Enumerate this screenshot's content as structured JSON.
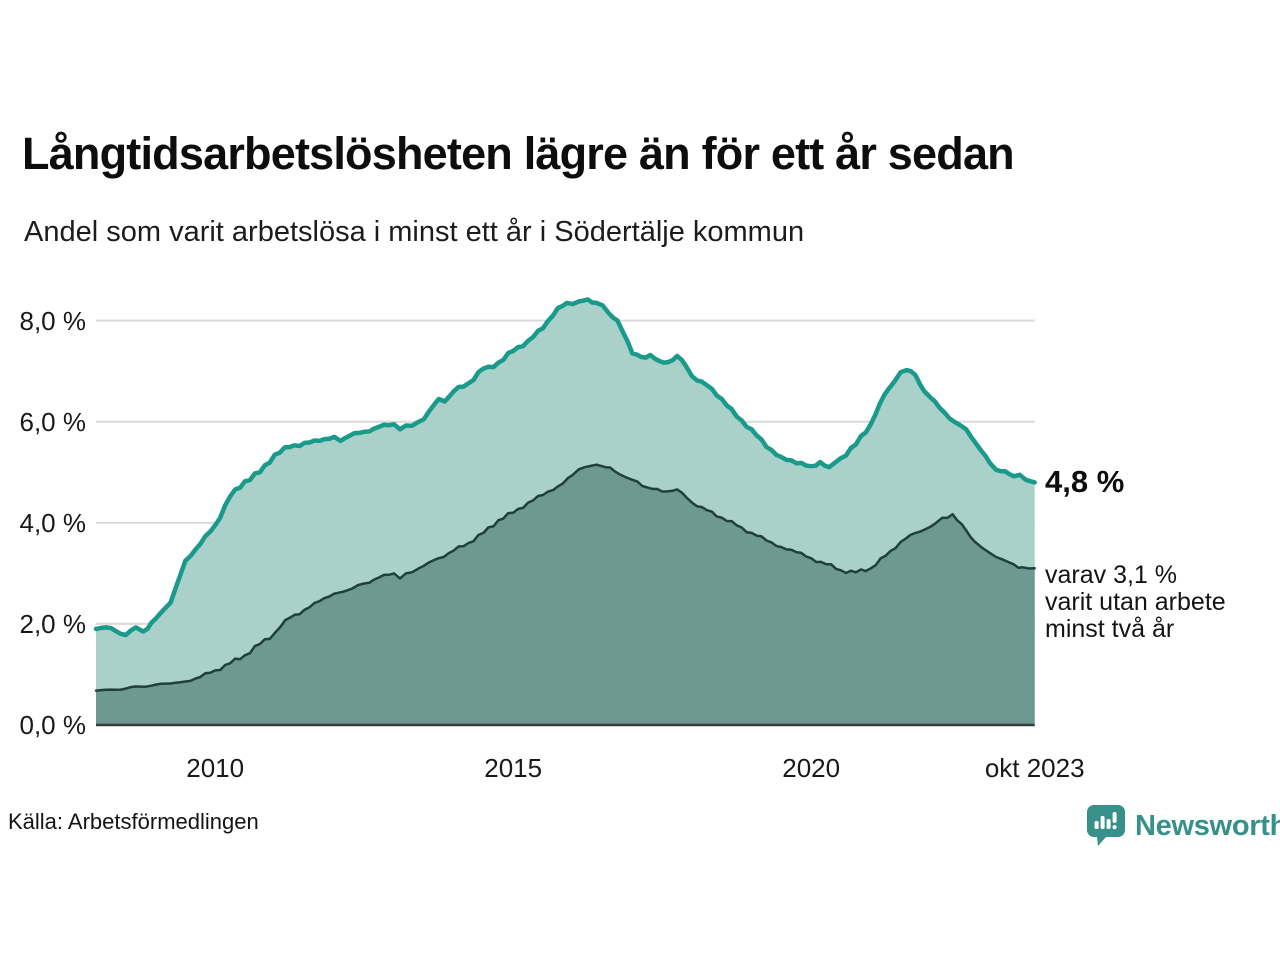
{
  "header": {
    "title": "Långtidsarbetslösheten lägre än för ett år sedan",
    "subtitle": "Andel som varit arbetslösa i minst ett år i Södertälje kommun"
  },
  "annotations": {
    "latest_value": "4,8 %",
    "secondary_line1": "varav 3,1 %",
    "secondary_line2": "varit utan arbete",
    "secondary_line3": "minst två år"
  },
  "source": {
    "label": "Källa: Arbetsförmedlingen"
  },
  "branding": {
    "name": "Newsworthy",
    "icon": "newsworthy-speech-bubble-bar-chart-icon",
    "color": "#37918a"
  },
  "chart_data": {
    "type": "area",
    "title": "Långtidsarbetslösheten lägre än för ett år sedan",
    "subtitle": "Andel som varit arbetslösa i minst ett år i Södertälje kommun",
    "x_unit": "time (monthly observations, decimal years)",
    "x_range": [
      2008.0,
      2023.75
    ],
    "ylim": [
      0,
      8.6
    ],
    "grid": "horizontal",
    "colors": {
      "grid": "#d9d9d9",
      "axis": "#3a3a3a",
      "series1_line": "#1a9a8b",
      "series1_fill": "#a9d0c9",
      "series2_line": "#20403c",
      "series2_fill": "#6e9993"
    },
    "y_ticks": [
      {
        "label": "0,0 %",
        "value": 0
      },
      {
        "label": "2,0 %",
        "value": 2
      },
      {
        "label": "4,0 %",
        "value": 4
      },
      {
        "label": "6,0 %",
        "value": 6
      },
      {
        "label": "8,0 %",
        "value": 8
      }
    ],
    "x_ticks": [
      {
        "label": "2010",
        "t": 2010
      },
      {
        "label": "2015",
        "t": 2015
      },
      {
        "label": "2020",
        "t": 2020
      },
      {
        "label": "okt 2023",
        "t": 2023.75
      }
    ],
    "series": [
      {
        "name": "Andel som varit arbetslösa i minst ett år",
        "latest_label": "4,8 %",
        "latest_value_pct": 4.8,
        "points": [
          [
            2008.0,
            1.9
          ],
          [
            2008.17,
            1.93
          ],
          [
            2008.33,
            1.86
          ],
          [
            2008.5,
            1.78
          ],
          [
            2008.67,
            1.93
          ],
          [
            2008.79,
            1.85
          ],
          [
            2009.0,
            2.1
          ],
          [
            2009.25,
            2.42
          ],
          [
            2009.5,
            3.25
          ],
          [
            2009.75,
            3.58
          ],
          [
            2010.0,
            3.95
          ],
          [
            2010.25,
            4.52
          ],
          [
            2010.5,
            4.82
          ],
          [
            2010.75,
            5.0
          ],
          [
            2011.0,
            5.35
          ],
          [
            2011.25,
            5.5
          ],
          [
            2011.5,
            5.58
          ],
          [
            2011.75,
            5.62
          ],
          [
            2012.0,
            5.7
          ],
          [
            2012.1,
            5.62
          ],
          [
            2012.25,
            5.72
          ],
          [
            2012.5,
            5.8
          ],
          [
            2012.75,
            5.9
          ],
          [
            2013.0,
            5.95
          ],
          [
            2013.1,
            5.85
          ],
          [
            2013.3,
            5.92
          ],
          [
            2013.5,
            6.05
          ],
          [
            2013.75,
            6.45
          ],
          [
            2013.85,
            6.4
          ],
          [
            2014.0,
            6.6
          ],
          [
            2014.25,
            6.76
          ],
          [
            2014.5,
            7.05
          ],
          [
            2014.67,
            7.08
          ],
          [
            2015.0,
            7.4
          ],
          [
            2015.25,
            7.6
          ],
          [
            2015.5,
            7.85
          ],
          [
            2015.75,
            8.25
          ],
          [
            2015.9,
            8.35
          ],
          [
            2016.1,
            8.38
          ],
          [
            2016.25,
            8.42
          ],
          [
            2016.4,
            8.35
          ],
          [
            2016.5,
            8.3
          ],
          [
            2016.6,
            8.15
          ],
          [
            2016.75,
            8.0
          ],
          [
            2016.85,
            7.75
          ],
          [
            2017.0,
            7.35
          ],
          [
            2017.15,
            7.28
          ],
          [
            2017.3,
            7.32
          ],
          [
            2017.45,
            7.2
          ],
          [
            2017.6,
            7.18
          ],
          [
            2017.75,
            7.3
          ],
          [
            2017.9,
            7.1
          ],
          [
            2018.0,
            6.9
          ],
          [
            2018.25,
            6.72
          ],
          [
            2018.5,
            6.45
          ],
          [
            2018.75,
            6.1
          ],
          [
            2019.0,
            5.85
          ],
          [
            2019.25,
            5.5
          ],
          [
            2019.5,
            5.3
          ],
          [
            2019.75,
            5.18
          ],
          [
            2020.0,
            5.12
          ],
          [
            2020.15,
            5.2
          ],
          [
            2020.3,
            5.1
          ],
          [
            2020.5,
            5.28
          ],
          [
            2020.75,
            5.55
          ],
          [
            2021.0,
            5.95
          ],
          [
            2021.15,
            6.35
          ],
          [
            2021.3,
            6.65
          ],
          [
            2021.5,
            6.98
          ],
          [
            2021.6,
            7.02
          ],
          [
            2021.75,
            6.92
          ],
          [
            2021.9,
            6.6
          ],
          [
            2022.0,
            6.48
          ],
          [
            2022.15,
            6.28
          ],
          [
            2022.4,
            6.0
          ],
          [
            2022.5,
            5.93
          ],
          [
            2022.6,
            5.85
          ],
          [
            2022.85,
            5.43
          ],
          [
            2023.0,
            5.18
          ],
          [
            2023.1,
            5.05
          ],
          [
            2023.25,
            5.02
          ],
          [
            2023.4,
            4.92
          ],
          [
            2023.5,
            4.95
          ],
          [
            2023.6,
            4.85
          ],
          [
            2023.75,
            4.8
          ]
        ]
      },
      {
        "name": "varav varit utan arbete minst två år",
        "latest_label": "3,1 %",
        "latest_value_pct": 3.1,
        "points": [
          [
            2008.0,
            0.68
          ],
          [
            2008.25,
            0.7
          ],
          [
            2008.5,
            0.72
          ],
          [
            2008.75,
            0.76
          ],
          [
            2009.0,
            0.8
          ],
          [
            2009.25,
            0.82
          ],
          [
            2009.5,
            0.86
          ],
          [
            2009.75,
            0.95
          ],
          [
            2010.0,
            1.08
          ],
          [
            2010.25,
            1.22
          ],
          [
            2010.5,
            1.38
          ],
          [
            2010.75,
            1.6
          ],
          [
            2011.0,
            1.82
          ],
          [
            2011.1,
            1.95
          ],
          [
            2011.25,
            2.12
          ],
          [
            2011.5,
            2.28
          ],
          [
            2011.75,
            2.45
          ],
          [
            2012.0,
            2.6
          ],
          [
            2012.3,
            2.7
          ],
          [
            2012.5,
            2.8
          ],
          [
            2012.75,
            2.92
          ],
          [
            2013.0,
            3.0
          ],
          [
            2013.1,
            2.9
          ],
          [
            2013.3,
            3.02
          ],
          [
            2013.5,
            3.15
          ],
          [
            2013.75,
            3.3
          ],
          [
            2014.0,
            3.45
          ],
          [
            2014.25,
            3.6
          ],
          [
            2014.5,
            3.8
          ],
          [
            2014.75,
            4.05
          ],
          [
            2015.0,
            4.2
          ],
          [
            2015.25,
            4.4
          ],
          [
            2015.5,
            4.55
          ],
          [
            2015.75,
            4.72
          ],
          [
            2016.0,
            4.95
          ],
          [
            2016.2,
            5.1
          ],
          [
            2016.4,
            5.15
          ],
          [
            2016.55,
            5.1
          ],
          [
            2016.7,
            5.02
          ],
          [
            2016.8,
            4.95
          ],
          [
            2017.0,
            4.85
          ],
          [
            2017.25,
            4.7
          ],
          [
            2017.5,
            4.62
          ],
          [
            2017.75,
            4.66
          ],
          [
            2018.0,
            4.4
          ],
          [
            2018.25,
            4.25
          ],
          [
            2018.5,
            4.1
          ],
          [
            2018.75,
            3.95
          ],
          [
            2019.0,
            3.8
          ],
          [
            2019.25,
            3.65
          ],
          [
            2019.5,
            3.52
          ],
          [
            2019.75,
            3.42
          ],
          [
            2020.0,
            3.3
          ],
          [
            2020.25,
            3.18
          ],
          [
            2020.5,
            3.06
          ],
          [
            2020.75,
            3.02
          ],
          [
            2021.0,
            3.1
          ],
          [
            2021.25,
            3.35
          ],
          [
            2021.5,
            3.62
          ],
          [
            2021.75,
            3.8
          ],
          [
            2022.0,
            3.92
          ],
          [
            2022.2,
            4.1
          ],
          [
            2022.37,
            4.17
          ],
          [
            2022.45,
            4.05
          ],
          [
            2022.6,
            3.85
          ],
          [
            2022.75,
            3.62
          ],
          [
            2022.9,
            3.48
          ],
          [
            2023.0,
            3.4
          ],
          [
            2023.2,
            3.28
          ],
          [
            2023.4,
            3.18
          ],
          [
            2023.55,
            3.12
          ],
          [
            2023.75,
            3.1
          ]
        ]
      }
    ]
  }
}
